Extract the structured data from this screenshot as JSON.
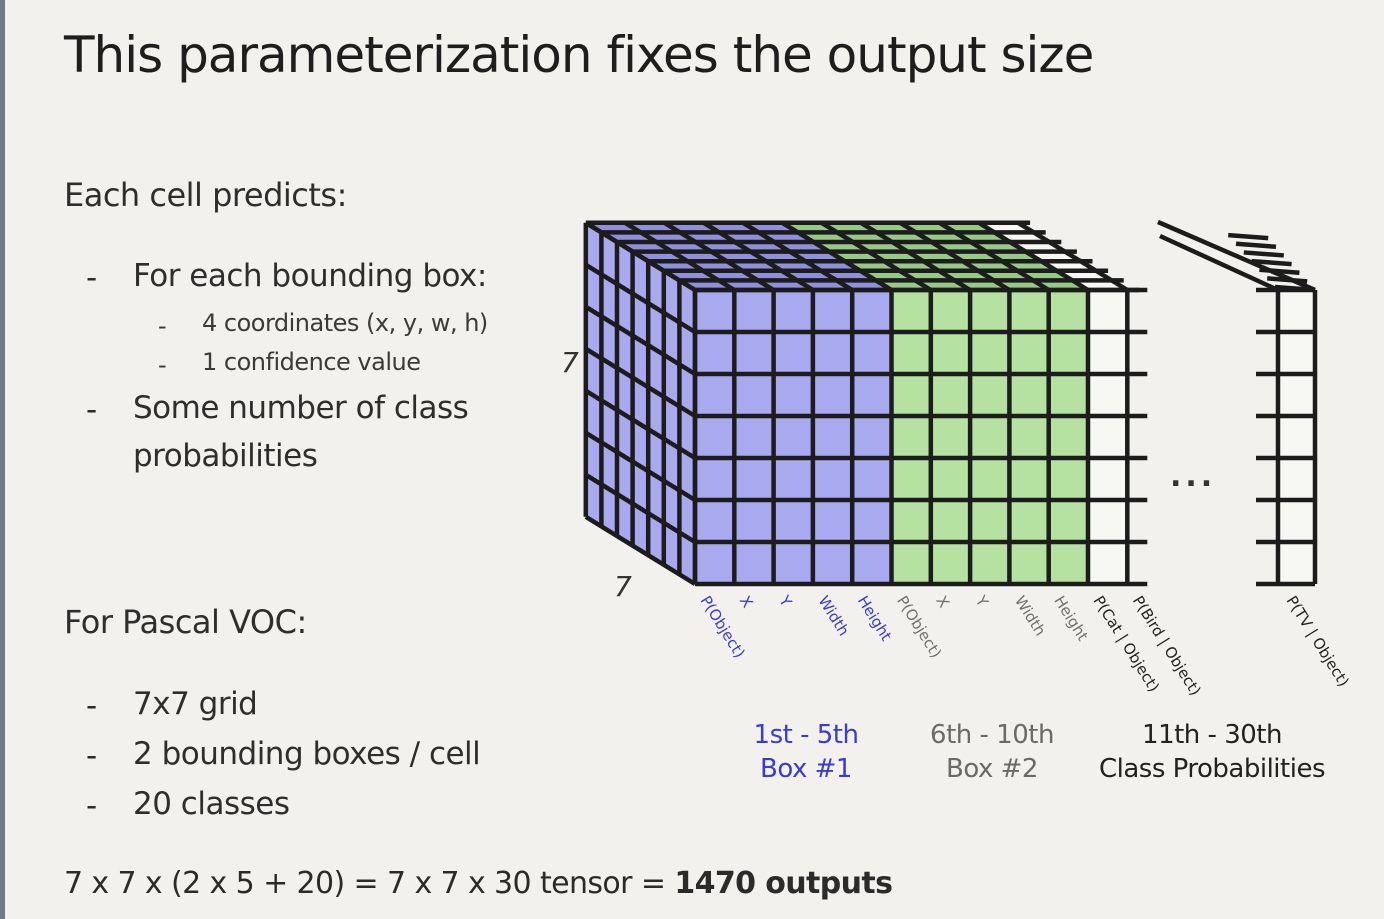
{
  "slide": {
    "title": "This parameterization fixes the output size",
    "each_cell_heading": "Each cell predicts:",
    "bullet_dash": "-",
    "bullets": [
      "For each bounding box:",
      "Some number of class",
      "probabilities"
    ],
    "sub_bullets": [
      "4 coordinates (x, y, w, h)",
      "1 confidence value"
    ],
    "pascal_heading": "For Pascal VOC:",
    "pascal_bullets": [
      "7x7 grid",
      "2 bounding boxes / cell",
      "20 classes"
    ],
    "formula_prefix": "7 x 7 x (2 x 5 + 20) = 7 x 7 x 30 tensor = ",
    "formula_bold": "1470 outputs"
  },
  "diagram": {
    "height_label": "7",
    "depth_label": "7",
    "ellipsis": "...",
    "colors": {
      "box1": "#a9a9f0",
      "box1_top": "#8f8fdc",
      "box2": "#b5e2a0",
      "box2_top": "#96c986",
      "classes": "#f7f7f4",
      "grid": "#1c1c1c",
      "label_blue": "#3a3ad6",
      "label_gray": "#707070",
      "label_black": "#222222"
    },
    "column_labels": [
      {
        "text": "P(Object)",
        "group": "box1"
      },
      {
        "text": "X",
        "group": "box1"
      },
      {
        "text": "Y",
        "group": "box1"
      },
      {
        "text": "Width",
        "group": "box1"
      },
      {
        "text": "Height",
        "group": "box1"
      },
      {
        "text": "P(Object)",
        "group": "box2"
      },
      {
        "text": "X",
        "group": "box2"
      },
      {
        "text": "Y",
        "group": "box2"
      },
      {
        "text": "Width",
        "group": "box2"
      },
      {
        "text": "Height",
        "group": "box2"
      },
      {
        "text": "P(Cat | Object)",
        "group": "classes"
      },
      {
        "text": "P(Bird | Object)",
        "group": "classes"
      },
      {
        "text": "P(TV | Object)",
        "group": "classes"
      }
    ],
    "captions": [
      {
        "line1": "1st - 5th",
        "line2": "Box #1",
        "group": "box1"
      },
      {
        "line1": "6th - 10th",
        "line2": "Box #2",
        "group": "box2"
      },
      {
        "line1": "11th - 30th",
        "line2": "Class Probabilities",
        "group": "classes"
      }
    ]
  }
}
